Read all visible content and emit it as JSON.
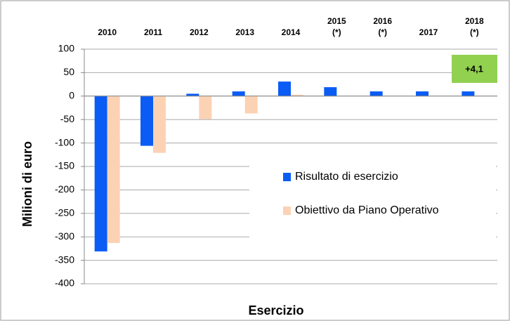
{
  "chart_data": {
    "type": "bar",
    "categories": [
      "2010",
      "2011",
      "2012",
      "2013",
      "2014",
      "2015\n(*)",
      "2016\n(*)",
      "2017",
      "2018\n(*)"
    ],
    "series": [
      {
        "name": "Risultato di esercizio",
        "color": "#0a5cf5",
        "values": [
          -331,
          -106,
          5,
          10,
          31,
          19,
          10,
          10,
          10
        ]
      },
      {
        "name": "Obiettivo da Piano Operativo",
        "color": "#fcd2b4",
        "values": [
          -313,
          -121,
          -49,
          -37,
          3,
          null,
          null,
          null,
          null
        ]
      }
    ],
    "ylabel": "Milioni di euro",
    "xlabel": "Esercizio",
    "ylim": [
      -400,
      100
    ],
    "yticks": [
      -400,
      -350,
      -300,
      -250,
      -200,
      -150,
      -100,
      -50,
      0,
      50,
      100
    ],
    "grid": true,
    "legend": "right",
    "annotation": {
      "text": "+4,1",
      "color": "#92d050"
    }
  }
}
